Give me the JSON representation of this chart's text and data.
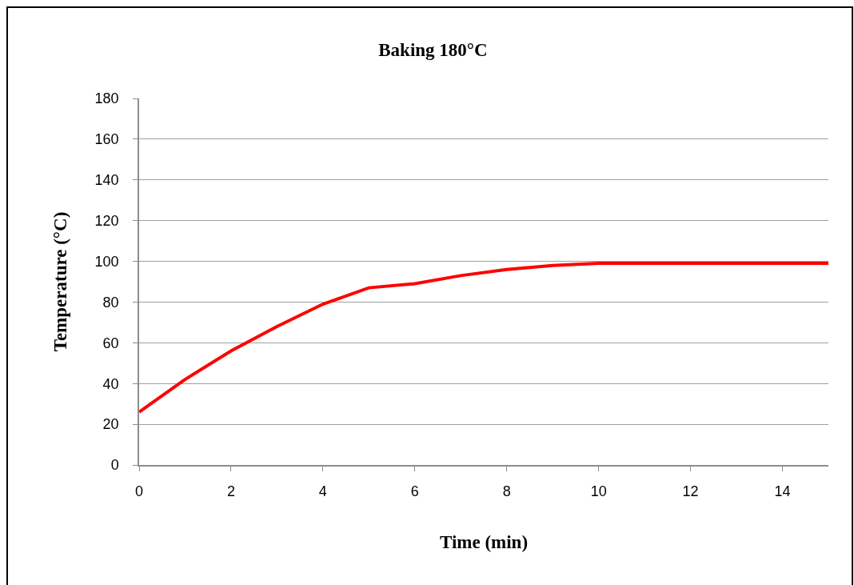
{
  "chart_data": {
    "type": "line",
    "title": "Baking 180°C",
    "xlabel": "Time (min)",
    "ylabel": "Temperature (°C)",
    "x": [
      0,
      1,
      2,
      3,
      4,
      5,
      6,
      7,
      8,
      9,
      10,
      11,
      12,
      13,
      14,
      15
    ],
    "series": [
      {
        "color": "#ff0000",
        "values": [
          26,
          42,
          56,
          68,
          79,
          87,
          89,
          93,
          96,
          98,
          99,
          99,
          99,
          99,
          99,
          99
        ]
      }
    ],
    "xlim": [
      0,
      15
    ],
    "xticks": [
      0,
      2,
      4,
      6,
      8,
      10,
      12,
      14
    ],
    "ylim": [
      0,
      180
    ],
    "yticks": [
      0,
      20,
      40,
      60,
      80,
      100,
      120,
      140,
      160,
      180
    ],
    "grid": "y",
    "marker": "none",
    "line_style": "solid"
  }
}
